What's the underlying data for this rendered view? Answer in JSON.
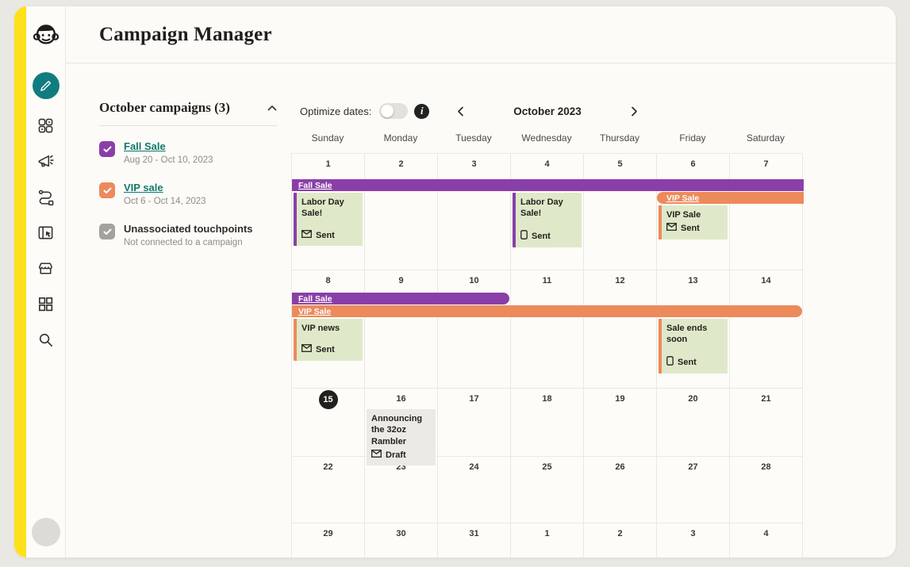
{
  "window": {
    "title": "Campaign Manager"
  },
  "sidebar": {
    "icons": [
      {
        "name": "pencil-icon",
        "active": true
      },
      {
        "name": "audience-icon",
        "active": false
      },
      {
        "name": "megaphone-icon",
        "active": false
      },
      {
        "name": "automations-icon",
        "active": false
      },
      {
        "name": "website-icon",
        "active": false
      },
      {
        "name": "commerce-icon",
        "active": false
      },
      {
        "name": "apps-grid-icon",
        "active": false
      },
      {
        "name": "search-icon",
        "active": false
      }
    ]
  },
  "campaign_panel": {
    "heading": "October campaigns (3)",
    "items": [
      {
        "name": "Fall Sale",
        "dates": "Aug 20 - Oct 10, 2023",
        "color": "#8a3fa8",
        "checked": true,
        "link": true
      },
      {
        "name": "VIP sale",
        "dates": "Oct 6 - Oct 14, 2023",
        "color": "#ec8a5c",
        "checked": true,
        "link": true
      },
      {
        "name": "Unassociated touchpoints",
        "dates": "Not connected to a campaign",
        "color": "#a3a29d",
        "checked": true,
        "link": false
      }
    ]
  },
  "toolbar": {
    "optimize_label": "Optimize dates:",
    "toggle_state": "off",
    "month": "October 2023"
  },
  "calendar": {
    "day_headers": [
      "Sunday",
      "Monday",
      "Tuesday",
      "Wednesday",
      "Thursday",
      "Friday",
      "Saturday"
    ],
    "weeks": [
      [
        "1",
        "2",
        "3",
        "4",
        "5",
        "6",
        "7"
      ],
      [
        "8",
        "9",
        "10",
        "11",
        "12",
        "13",
        "14"
      ],
      [
        "15",
        "16",
        "17",
        "18",
        "19",
        "20",
        "21"
      ],
      [
        "22",
        "23",
        "24",
        "25",
        "26",
        "27",
        "28"
      ],
      [
        "29",
        "30",
        "31",
        "1",
        "2",
        "3",
        "4"
      ]
    ],
    "today": {
      "week": 2,
      "col": 0,
      "label": "15"
    },
    "bars": [
      {
        "week": 0,
        "lane": 0,
        "label": "Fall Sale",
        "campaign": "fall",
        "start": 0,
        "end": 7,
        "round_left": false,
        "round_right": false
      },
      {
        "week": 0,
        "lane": 1,
        "label": "VIP Sale",
        "campaign": "vip",
        "start": 5,
        "end": 7,
        "round_left": true,
        "round_right": false
      },
      {
        "week": 1,
        "lane": 0,
        "label": "Fall Sale",
        "campaign": "fall",
        "start": 0,
        "end": 3,
        "round_left": false,
        "round_right": true
      },
      {
        "week": 1,
        "lane": 1,
        "label": "VIP Sale",
        "campaign": "vip",
        "start": 0,
        "end": 7,
        "round_left": false,
        "round_right": true
      }
    ],
    "events": [
      {
        "week": 0,
        "col": 0,
        "title": "Labor Day Sale!",
        "campaign": "fall",
        "channel": "email",
        "status": "Sent",
        "compact": false
      },
      {
        "week": 0,
        "col": 3,
        "title": "Labor Day Sale!",
        "campaign": "fall",
        "channel": "sms",
        "status": "Sent",
        "compact": false
      },
      {
        "week": 0,
        "col": 5,
        "title": "VIP Sale",
        "campaign": "vip",
        "channel": "email",
        "status": "Sent",
        "compact": true
      },
      {
        "week": 1,
        "col": 0,
        "title": "VIP news",
        "campaign": "vip",
        "channel": "email",
        "status": "Sent",
        "compact": false
      },
      {
        "week": 1,
        "col": 5,
        "title": "Sale ends soon",
        "campaign": "vip",
        "channel": "sms",
        "status": "Sent",
        "compact": false
      },
      {
        "week": 2,
        "col": 1,
        "title": "Announcing the 32oz Rambler",
        "campaign": null,
        "channel": "email",
        "status": "Draft",
        "compact": true
      }
    ]
  },
  "colors": {
    "fall": "#8a3fa8",
    "vip": "#ec8a5c",
    "event_bg": "#dfe9c9",
    "draft_bg": "#ebeae5",
    "accent_yellow": "#ffe01b",
    "active_teal": "#117c80",
    "link_teal": "#117a6d",
    "today_bg": "#21201c"
  }
}
